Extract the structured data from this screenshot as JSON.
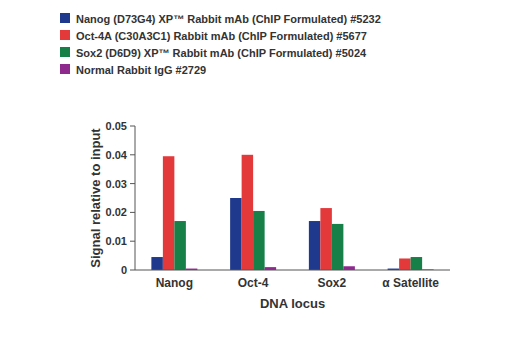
{
  "chart_data": {
    "type": "bar",
    "x_label": "DNA locus",
    "y_label": "Signal relative to input",
    "categories": [
      "Nanog",
      "Oct-4",
      "Sox2",
      "α Satellite"
    ],
    "series": [
      {
        "name": "Nanog (D73G4) XP™ Rabbit mAb (ChIP Formulated) #5232",
        "color": "#1f3a8c",
        "values": [
          0.0045,
          0.025,
          0.017,
          0.0005
        ]
      },
      {
        "name": "Oct-4A (C30A3C1) Rabbit mAb (ChIP Formulated) #5677",
        "color": "#e3393b",
        "values": [
          0.0395,
          0.04,
          0.0215,
          0.004
        ]
      },
      {
        "name": "Sox2 (D6D9) XP™ Rabbit mAb (ChIP Formulated) #5024",
        "color": "#168048",
        "values": [
          0.017,
          0.0205,
          0.016,
          0.0045
        ]
      },
      {
        "name": "Normal Rabbit IgG #2729",
        "color": "#8e2a8e",
        "values": [
          0.0005,
          0.001,
          0.0013,
          0.0002
        ]
      }
    ],
    "ylim": [
      0,
      0.05
    ],
    "yticks": [
      0,
      0.01,
      0.02,
      0.03,
      0.04,
      0.05
    ],
    "grid": false,
    "legend": "top"
  }
}
